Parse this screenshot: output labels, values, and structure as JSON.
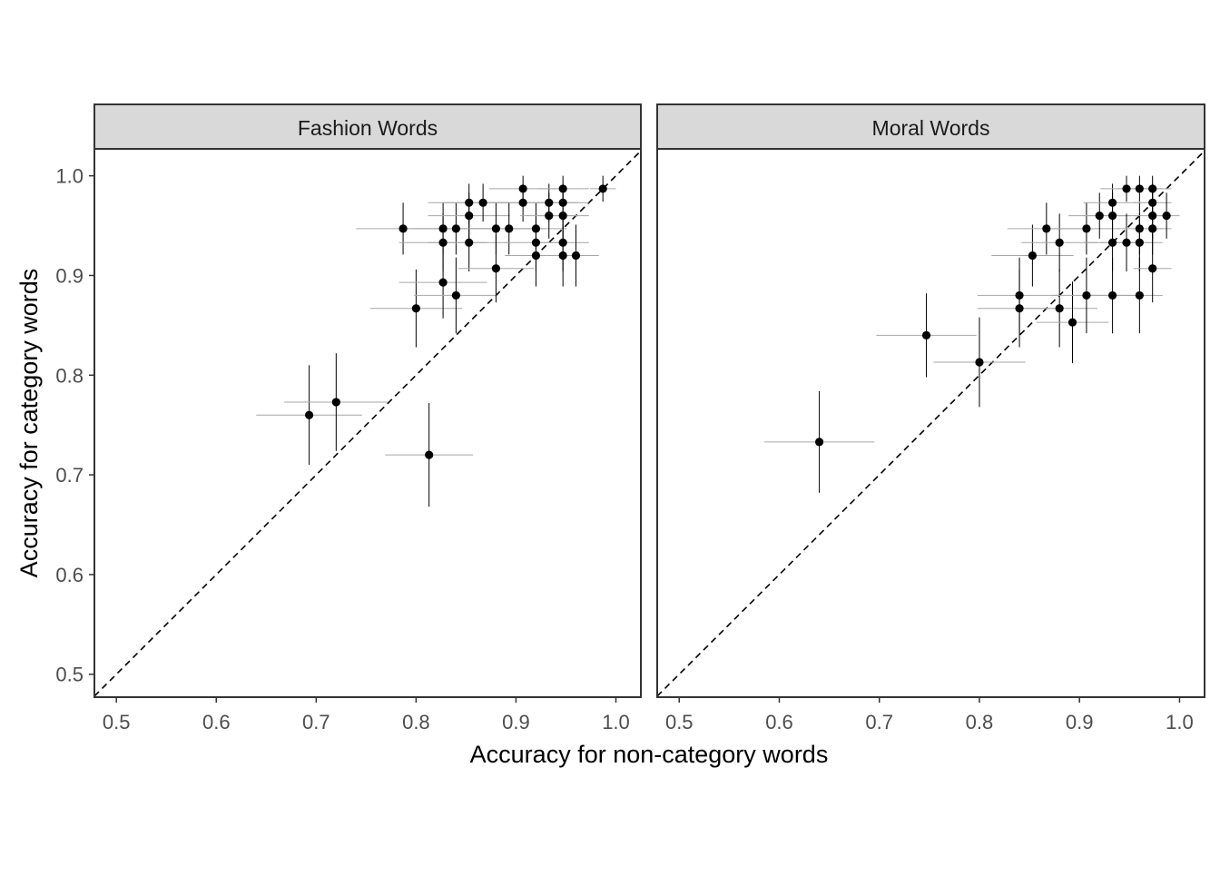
{
  "chart_data": {
    "type": "scatter",
    "xlabel": "Accuracy for non-category words",
    "ylabel": "Accuracy for category words",
    "xlim": [
      0.478,
      1.025
    ],
    "ylim": [
      0.477,
      1.027
    ],
    "x_ticks": [
      "0.5",
      "0.6",
      "0.7",
      "0.8",
      "0.9",
      "1.0"
    ],
    "y_ticks": [
      "0.5",
      "0.6",
      "0.7",
      "0.8",
      "0.9",
      "1.0"
    ],
    "reference_line": "y = x (dashed)",
    "grid": false,
    "panels": [
      {
        "title": "Fashion Words",
        "points": [
          {
            "x": 0.693,
            "y": 0.76,
            "xerr": 0.053,
            "yerr": 0.05
          },
          {
            "x": 0.72,
            "y": 0.773,
            "xerr": 0.052,
            "yerr": 0.049
          },
          {
            "x": 0.813,
            "y": 0.72,
            "xerr": 0.044,
            "yerr": 0.052
          },
          {
            "x": 0.787,
            "y": 0.947,
            "xerr": 0.047,
            "yerr": 0.026
          },
          {
            "x": 0.8,
            "y": 0.867,
            "xerr": 0.046,
            "yerr": 0.039
          },
          {
            "x": 0.827,
            "y": 0.947,
            "xerr": 0.044,
            "yerr": 0.026
          },
          {
            "x": 0.827,
            "y": 0.933,
            "xerr": 0.044,
            "yerr": 0.029
          },
          {
            "x": 0.827,
            "y": 0.893,
            "xerr": 0.044,
            "yerr": 0.036
          },
          {
            "x": 0.84,
            "y": 0.947,
            "xerr": 0.042,
            "yerr": 0.026
          },
          {
            "x": 0.84,
            "y": 0.88,
            "xerr": 0.042,
            "yerr": 0.038
          },
          {
            "x": 0.853,
            "y": 0.973,
            "xerr": 0.041,
            "yerr": 0.019
          },
          {
            "x": 0.853,
            "y": 0.96,
            "xerr": 0.041,
            "yerr": 0.023
          },
          {
            "x": 0.853,
            "y": 0.933,
            "xerr": 0.041,
            "yerr": 0.029
          },
          {
            "x": 0.867,
            "y": 0.973,
            "xerr": 0.039,
            "yerr": 0.019
          },
          {
            "x": 0.88,
            "y": 0.947,
            "xerr": 0.038,
            "yerr": 0.026
          },
          {
            "x": 0.88,
            "y": 0.907,
            "xerr": 0.038,
            "yerr": 0.034
          },
          {
            "x": 0.893,
            "y": 0.947,
            "xerr": 0.036,
            "yerr": 0.026
          },
          {
            "x": 0.907,
            "y": 0.987,
            "xerr": 0.034,
            "yerr": 0.013
          },
          {
            "x": 0.907,
            "y": 0.973,
            "xerr": 0.034,
            "yerr": 0.019
          },
          {
            "x": 0.92,
            "y": 0.947,
            "xerr": 0.031,
            "yerr": 0.026
          },
          {
            "x": 0.92,
            "y": 0.933,
            "xerr": 0.031,
            "yerr": 0.029
          },
          {
            "x": 0.92,
            "y": 0.92,
            "xerr": 0.031,
            "yerr": 0.031
          },
          {
            "x": 0.933,
            "y": 0.973,
            "xerr": 0.029,
            "yerr": 0.019
          },
          {
            "x": 0.933,
            "y": 0.96,
            "xerr": 0.029,
            "yerr": 0.023
          },
          {
            "x": 0.947,
            "y": 0.987,
            "xerr": 0.026,
            "yerr": 0.013
          },
          {
            "x": 0.947,
            "y": 0.973,
            "xerr": 0.026,
            "yerr": 0.019
          },
          {
            "x": 0.947,
            "y": 0.96,
            "xerr": 0.026,
            "yerr": 0.023
          },
          {
            "x": 0.947,
            "y": 0.933,
            "xerr": 0.026,
            "yerr": 0.029
          },
          {
            "x": 0.947,
            "y": 0.92,
            "xerr": 0.026,
            "yerr": 0.031
          },
          {
            "x": 0.96,
            "y": 0.92,
            "xerr": 0.023,
            "yerr": 0.031
          },
          {
            "x": 0.987,
            "y": 0.987,
            "xerr": 0.013,
            "yerr": 0.013
          }
        ]
      },
      {
        "title": "Moral Words",
        "points": [
          {
            "x": 0.64,
            "y": 0.733,
            "xerr": 0.055,
            "yerr": 0.051
          },
          {
            "x": 0.747,
            "y": 0.84,
            "xerr": 0.05,
            "yerr": 0.042
          },
          {
            "x": 0.8,
            "y": 0.813,
            "xerr": 0.046,
            "yerr": 0.045
          },
          {
            "x": 0.84,
            "y": 0.88,
            "xerr": 0.042,
            "yerr": 0.038
          },
          {
            "x": 0.84,
            "y": 0.867,
            "xerr": 0.042,
            "yerr": 0.039
          },
          {
            "x": 0.853,
            "y": 0.92,
            "xerr": 0.041,
            "yerr": 0.031
          },
          {
            "x": 0.867,
            "y": 0.947,
            "xerr": 0.039,
            "yerr": 0.026
          },
          {
            "x": 0.88,
            "y": 0.933,
            "xerr": 0.038,
            "yerr": 0.029
          },
          {
            "x": 0.88,
            "y": 0.867,
            "xerr": 0.038,
            "yerr": 0.039
          },
          {
            "x": 0.893,
            "y": 0.853,
            "xerr": 0.036,
            "yerr": 0.041
          },
          {
            "x": 0.907,
            "y": 0.947,
            "xerr": 0.034,
            "yerr": 0.026
          },
          {
            "x": 0.907,
            "y": 0.88,
            "xerr": 0.034,
            "yerr": 0.038
          },
          {
            "x": 0.92,
            "y": 0.96,
            "xerr": 0.031,
            "yerr": 0.023
          },
          {
            "x": 0.933,
            "y": 0.973,
            "xerr": 0.029,
            "yerr": 0.019
          },
          {
            "x": 0.933,
            "y": 0.96,
            "xerr": 0.029,
            "yerr": 0.023
          },
          {
            "x": 0.933,
            "y": 0.933,
            "xerr": 0.029,
            "yerr": 0.029
          },
          {
            "x": 0.933,
            "y": 0.88,
            "xerr": 0.029,
            "yerr": 0.038
          },
          {
            "x": 0.947,
            "y": 0.987,
            "xerr": 0.026,
            "yerr": 0.013
          },
          {
            "x": 0.947,
            "y": 0.933,
            "xerr": 0.026,
            "yerr": 0.029
          },
          {
            "x": 0.96,
            "y": 0.987,
            "xerr": 0.023,
            "yerr": 0.013
          },
          {
            "x": 0.96,
            "y": 0.947,
            "xerr": 0.023,
            "yerr": 0.026
          },
          {
            "x": 0.96,
            "y": 0.933,
            "xerr": 0.023,
            "yerr": 0.029
          },
          {
            "x": 0.96,
            "y": 0.88,
            "xerr": 0.023,
            "yerr": 0.038
          },
          {
            "x": 0.973,
            "y": 0.987,
            "xerr": 0.019,
            "yerr": 0.013
          },
          {
            "x": 0.973,
            "y": 0.973,
            "xerr": 0.019,
            "yerr": 0.019
          },
          {
            "x": 0.973,
            "y": 0.96,
            "xerr": 0.019,
            "yerr": 0.023
          },
          {
            "x": 0.973,
            "y": 0.947,
            "xerr": 0.019,
            "yerr": 0.026
          },
          {
            "x": 0.973,
            "y": 0.907,
            "xerr": 0.019,
            "yerr": 0.034
          },
          {
            "x": 0.987,
            "y": 0.96,
            "xerr": 0.013,
            "yerr": 0.023
          }
        ]
      }
    ]
  },
  "colors": {
    "strip_fill": "#d9d9d9",
    "panel_border": "#333333",
    "point": "#000000",
    "xerr_bar": "#a6a6a6",
    "yerr_bar": "#000000",
    "tick_label": "#4d4d4d",
    "axis_title": "#000000"
  }
}
